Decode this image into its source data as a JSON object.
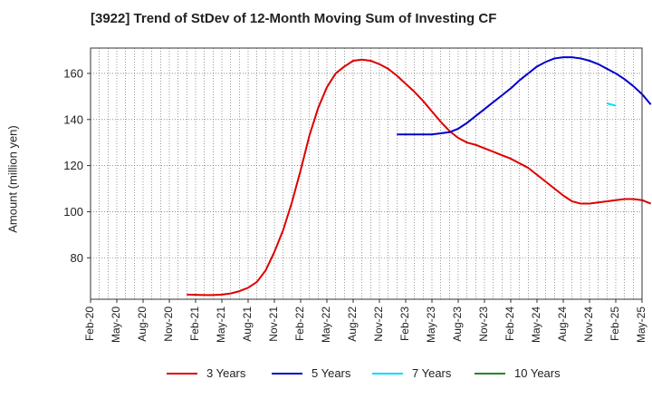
{
  "chart_data": {
    "type": "line",
    "title": "[3922]  Trend of StDev of 12-Month Moving Sum of Investing CF",
    "ylabel": "Amount (million yen)",
    "xlabel": "",
    "ylim": [
      62,
      171
    ],
    "yticks": [
      80,
      100,
      120,
      140,
      160
    ],
    "x_tick_labels": [
      "Feb-20",
      "May-20",
      "Aug-20",
      "Nov-20",
      "Feb-21",
      "May-21",
      "Aug-21",
      "Nov-21",
      "Feb-22",
      "May-22",
      "Aug-22",
      "Nov-22",
      "Feb-23",
      "May-23",
      "Aug-23",
      "Nov-23",
      "Feb-24",
      "May-24",
      "Aug-24",
      "Nov-24",
      "Feb-25",
      "May-25"
    ],
    "grid": true,
    "legend_position": "bottom",
    "series": [
      {
        "name": "3 Years",
        "color": "#dd0000",
        "start": "Jan-21",
        "values": [
          64,
          63.9,
          63.8,
          63.8,
          64,
          64.5,
          65.5,
          67,
          69.5,
          74.5,
          82.5,
          92,
          104,
          118,
          133,
          145,
          154,
          160,
          163,
          165.5,
          166,
          165.5,
          164,
          162,
          159,
          155.5,
          152,
          148,
          143.5,
          139,
          135,
          132,
          130,
          129,
          127.5,
          126,
          124.5,
          123,
          121,
          119,
          116,
          113,
          110,
          107,
          104.5,
          103.5,
          103.5,
          104,
          104.5,
          105,
          105.5,
          105.5,
          105,
          103.5
        ]
      },
      {
        "name": "5 Years",
        "color": "#0000cc",
        "start": "Jan-23",
        "values": [
          133.5,
          133.5,
          133.5,
          133.5,
          133.5,
          134,
          134.5,
          136,
          138.5,
          141.5,
          144.5,
          147.5,
          150.5,
          153.5,
          157,
          160,
          163,
          165,
          166.5,
          167,
          167,
          166.5,
          165.5,
          164,
          162,
          160,
          157.5,
          154.5,
          151,
          146.5
        ]
      },
      {
        "name": "7 Years",
        "color": "#00ddff",
        "start": "Jan-25",
        "values": [
          147,
          146
        ]
      },
      {
        "name": "10 Years",
        "color": "#228822",
        "start": "",
        "values": []
      }
    ]
  }
}
